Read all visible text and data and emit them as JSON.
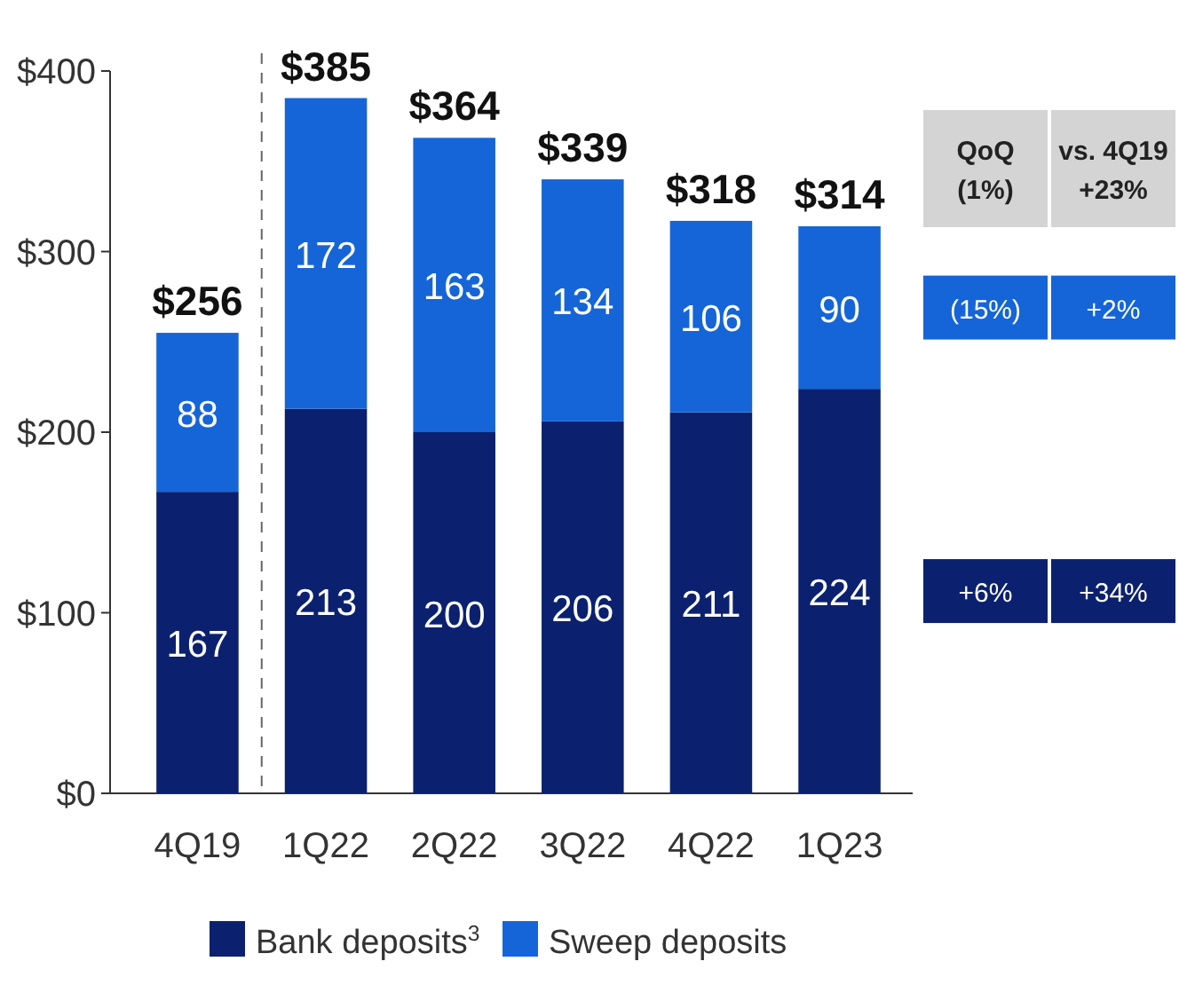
{
  "chart_data": {
    "type": "bar",
    "stacked": true,
    "categories": [
      "4Q19",
      "1Q22",
      "2Q22",
      "3Q22",
      "4Q22",
      "1Q23"
    ],
    "series": [
      {
        "name": "Bank deposits$^{3}$",
        "color": "#0b2170",
        "values": [
          167,
          213,
          200,
          206,
          211,
          224
        ]
      },
      {
        "name": "Sweep deposits",
        "color": "#1565d8",
        "values": [
          88,
          172,
          163,
          134,
          106,
          90
        ]
      }
    ],
    "data_labels": true,
    "totals": [
      "$256",
      "$385",
      "$364",
      "$339",
      "$318",
      "$314"
    ],
    "ylim": [
      0,
      400
    ],
    "yticks": [
      {
        "value": 0,
        "label": "$0"
      },
      {
        "value": 100,
        "label": "$100"
      },
      {
        "value": 200,
        "label": "$200"
      },
      {
        "value": 300,
        "label": "$300"
      },
      {
        "value": 400,
        "label": "$400"
      }
    ],
    "grid": false,
    "legend": "bottom",
    "annotations": [
      "QoQ\n(1%)",
      "vs. 4Q19\n+23%",
      "(15%)",
      "+2%",
      "+6%",
      "+34%"
    ]
  }
}
